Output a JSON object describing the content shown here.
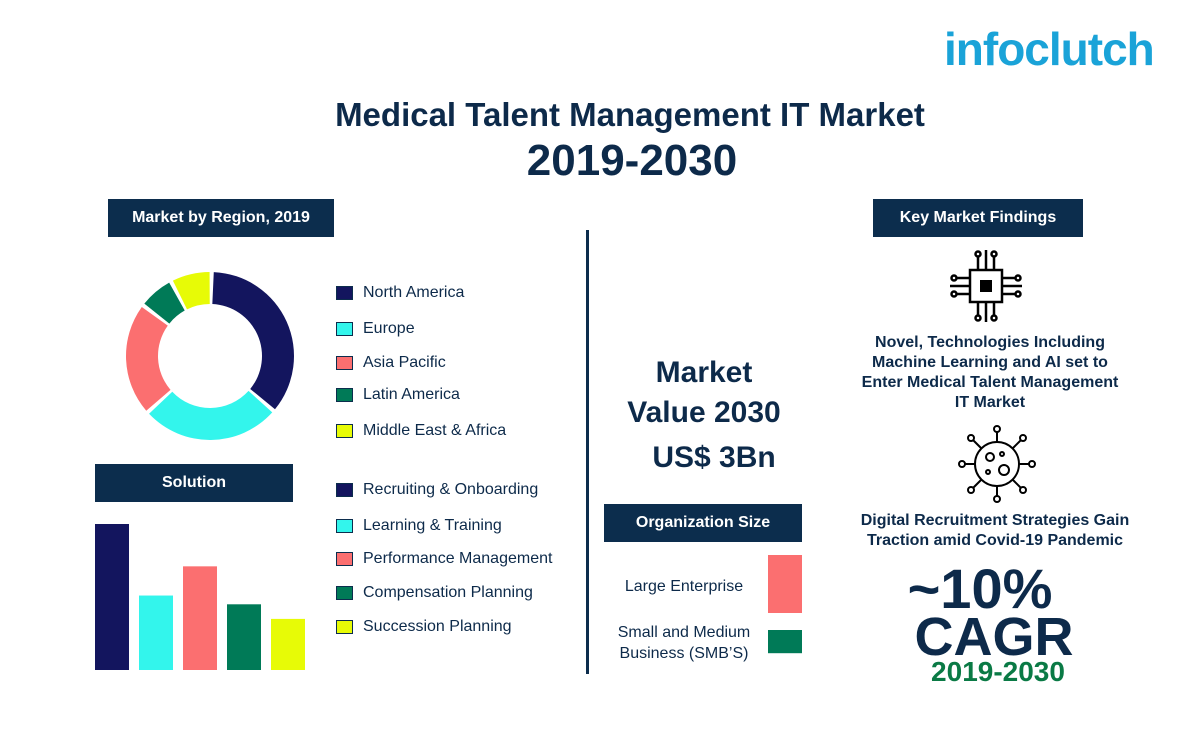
{
  "logo": {
    "text": "infoclutch"
  },
  "title": {
    "line1": "Medical Talent Management IT Market",
    "line2": "2019-2030"
  },
  "region": {
    "header": "Market by Region, 2019",
    "legend": [
      {
        "label": "North America",
        "color": "#13155e"
      },
      {
        "label": "Europe",
        "color": "#33f5ec"
      },
      {
        "label": "Asia Pacific",
        "color": "#fb6f70"
      },
      {
        "label": "Latin America",
        "color": "#007a57"
      },
      {
        "label": "Middle East & Africa",
        "color": "#e7fb06"
      }
    ]
  },
  "solution": {
    "header": "Solution",
    "legend": [
      {
        "label": "Recruiting & Onboarding",
        "color": "#13155e"
      },
      {
        "label": "Learning & Training",
        "color": "#33f5ec"
      },
      {
        "label": "Performance Management",
        "color": "#fb6f70"
      },
      {
        "label": "Compensation Planning",
        "color": "#007a57"
      },
      {
        "label": "Succession Planning",
        "color": "#e7fb06"
      }
    ]
  },
  "market_value": {
    "line1": "Market",
    "line2": "Value 2030",
    "line3": "US$ 3Bn"
  },
  "org_size": {
    "header": "Organization Size",
    "large": {
      "label": "Large Enterprise",
      "color": "#fb6f70"
    },
    "smb": {
      "line1": "Small and Medium",
      "line2": "Business (SMB’S)",
      "color": "#007a57"
    }
  },
  "findings": {
    "header": "Key Market Findings",
    "chip_icon": "microchip-icon",
    "virus_icon": "virus-icon",
    "finding1": [
      "Novel, Technologies Including",
      "Machine Learning and AI set to",
      "Enter Medical Talent Management",
      "IT Market"
    ],
    "finding2": [
      "Digital Recruitment Strategies Gain",
      "Traction amid Covid-19 Pandemic"
    ],
    "cagr_value": "~10%",
    "cagr_label": "CAGR",
    "cagr_period": "2019-2030",
    "cagr_period_color": "#0a7a45"
  },
  "chart_data": [
    {
      "type": "pie",
      "title": "Market by Region, 2019",
      "categories": [
        "North America",
        "Europe",
        "Asia Pacific",
        "Latin America",
        "Middle East & Africa"
      ],
      "values": [
        36,
        27,
        22,
        7,
        8
      ],
      "colors": [
        "#13155e",
        "#33f5ec",
        "#fb6f70",
        "#007a57",
        "#e7fb06"
      ],
      "donut": true
    },
    {
      "type": "bar",
      "title": "Solution",
      "categories": [
        "Recruiting & Onboarding",
        "Learning & Training",
        "Performance Management",
        "Compensation Planning",
        "Succession Planning"
      ],
      "values": [
        100,
        51,
        71,
        45,
        35
      ],
      "colors": [
        "#13155e",
        "#33f5ec",
        "#fb6f70",
        "#007a57",
        "#e7fb06"
      ],
      "ylim": [
        0,
        100
      ]
    },
    {
      "type": "bar",
      "title": "Organization Size",
      "categories": [
        "Large Enterprise",
        "Small and Medium Business (SMB’S)"
      ],
      "values": [
        100,
        40
      ],
      "colors": [
        "#fb6f70",
        "#007a57"
      ],
      "ylim": [
        0,
        100
      ]
    }
  ]
}
